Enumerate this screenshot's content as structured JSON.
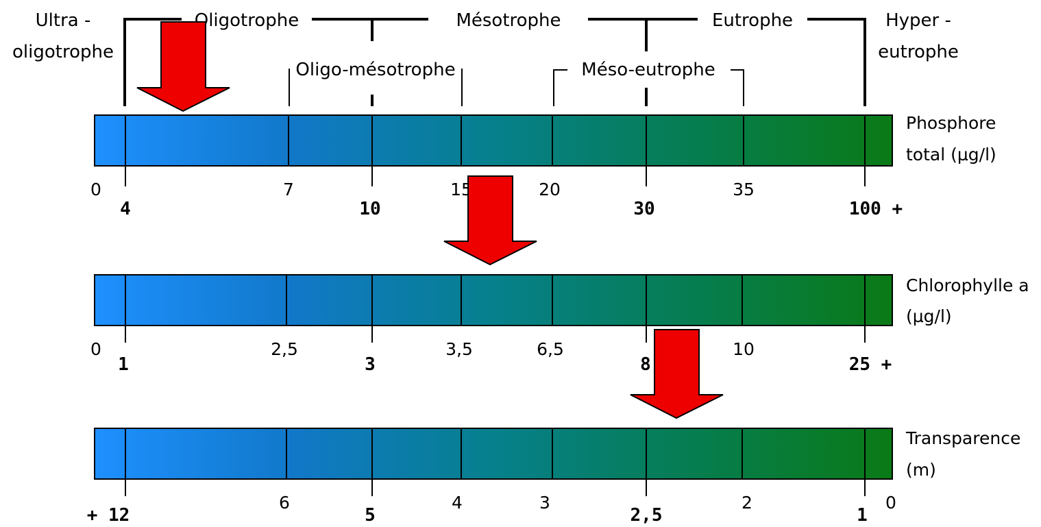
{
  "trophic_classes": {
    "ultra_oligotrophe": [
      "Ultra -",
      "oligotrophe"
    ],
    "oligotrophe": "Oligotrophe",
    "mesotrophe": "Mésotrophe",
    "eutrophe": "Eutrophe",
    "hyper_eutrophe": [
      "Hyper -",
      "eutrophe"
    ],
    "oligo_mesotrophe": "Oligo-mésotrophe",
    "meso_eutrophe": "Méso-eutrophe"
  },
  "scales": [
    {
      "param": [
        "Phosphore",
        "total (µg/l)"
      ],
      "minor_ticks": [
        "0",
        "7",
        "15",
        "20",
        "35"
      ],
      "major_ticks": [
        "4",
        "10",
        "30",
        "100 +"
      ]
    },
    {
      "param": [
        "Chlorophylle a",
        "(µg/l)"
      ],
      "minor_ticks": [
        "0",
        "2,5",
        "3,5",
        "6,5",
        "10"
      ],
      "major_ticks": [
        "1",
        "3",
        "8",
        "25 +"
      ]
    },
    {
      "param": [
        "Transparence",
        "(m)"
      ],
      "minor_ticks": [
        "6",
        "4",
        "3",
        "2",
        "0"
      ],
      "major_ticks": [
        "+ 12",
        "5",
        "2,5",
        "1"
      ]
    }
  ],
  "colors": {
    "gradient_start": "#1b8ef5",
    "gradient_mid": "#0a7f8c",
    "gradient_end": "#0a7a16",
    "arrow": "#ee0000"
  }
}
